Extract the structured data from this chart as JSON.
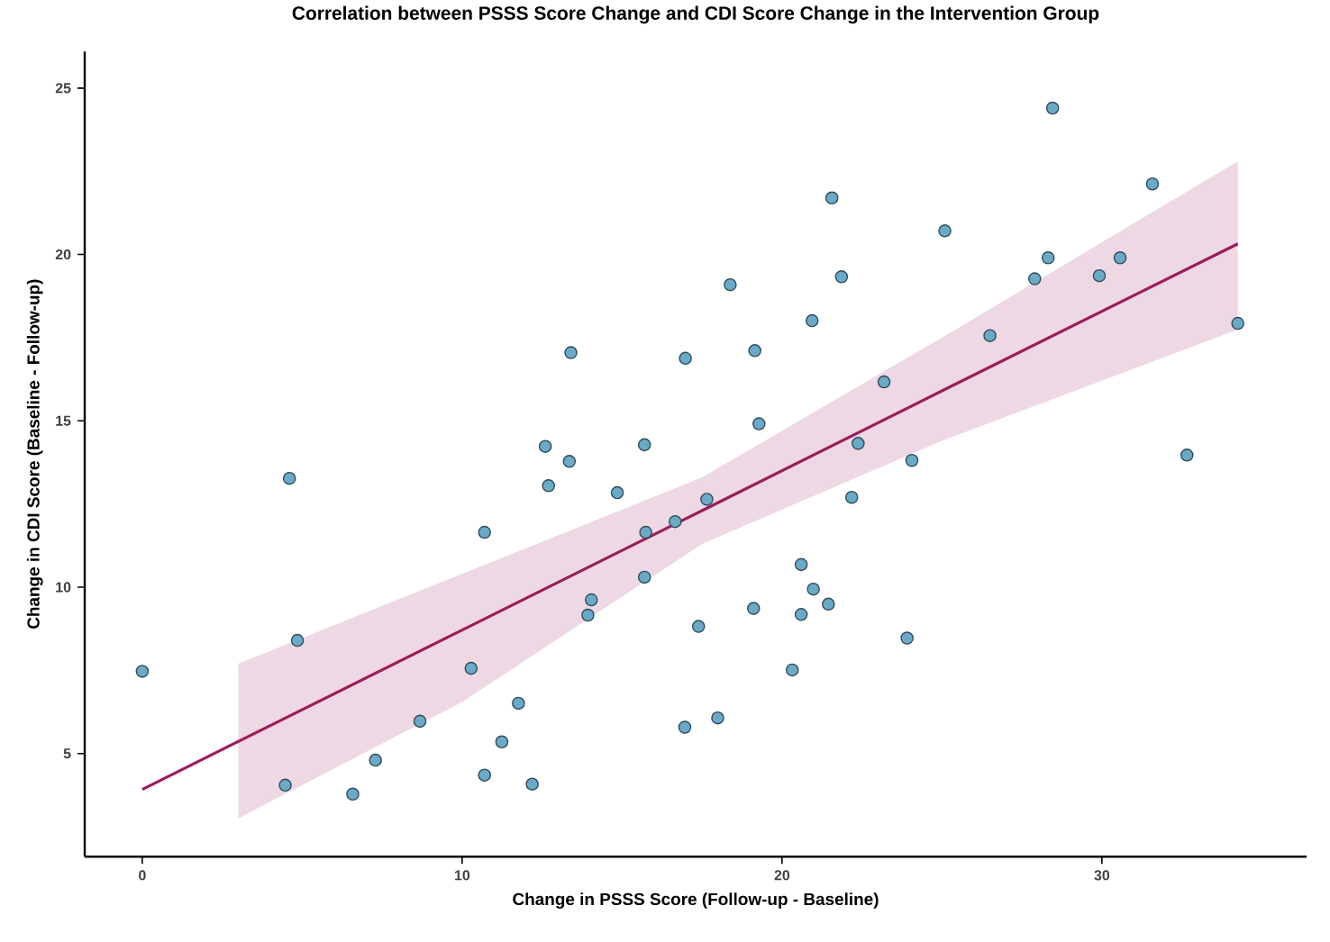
{
  "chart_data": {
    "type": "scatter",
    "title": "Correlation between PSSS Score Change and CDI Score Change in the Intervention Group",
    "xlabel": "Change in PSSS Score (Follow-up - Baseline)",
    "ylabel": "Change in CDI Score (Baseline - Follow-up)",
    "xlim": [
      -1.8,
      36.4
    ],
    "ylim": [
      1.9,
      26.1
    ],
    "xticks": [
      0,
      10,
      20,
      30
    ],
    "yticks": [
      5,
      10,
      15,
      20,
      25
    ],
    "marker": "circle",
    "series": [
      {
        "color": "#6aaac8",
        "x": [
          0,
          4.6,
          4.85,
          4.47,
          6.58,
          7.29,
          8.68,
          10.28,
          10.7,
          10.7,
          11.24,
          11.76,
          12.19,
          12.7,
          12.6,
          13.35,
          13.4,
          13.93,
          14.04,
          14.85,
          15.7,
          15.74,
          15.7,
          16.66,
          17.65,
          17.39,
          16.96,
          17.99,
          19.11,
          20.32,
          20.6,
          20.6,
          20.98,
          21.45,
          22.18,
          23.91,
          24.06,
          32.66,
          28.46,
          31.58,
          21.56,
          25.09,
          28.32,
          27.9,
          29.92,
          30.57,
          18.38,
          21.86,
          20.94,
          16.98,
          19.15,
          34.25,
          26.5,
          23.19,
          19.28,
          22.38
        ],
        "values": [
          7.47,
          13.27,
          8.4,
          4.05,
          3.78,
          4.8,
          5.97,
          7.56,
          11.65,
          4.35,
          5.35,
          6.51,
          4.08,
          13.05,
          14.23,
          13.78,
          17.05,
          9.16,
          9.62,
          12.84,
          14.28,
          11.65,
          10.3,
          11.97,
          12.64,
          8.82,
          5.79,
          6.07,
          9.36,
          7.51,
          10.68,
          9.18,
          9.94,
          9.49,
          12.7,
          8.47,
          13.81,
          13.97,
          24.4,
          22.12,
          21.7,
          20.71,
          19.9,
          19.27,
          19.36,
          19.9,
          19.09,
          19.33,
          18.01,
          16.88,
          17.11,
          17.93,
          17.56,
          16.17,
          14.91,
          14.32
        ]
      },
      {
        "type": "line",
        "color": "#9c1c5c",
        "marker": "none",
        "x": [
          0,
          3,
          10,
          17.5,
          25,
          34.25
        ],
        "values": [
          3.92,
          5.36,
          8.71,
          12.3,
          15.9,
          20.32
        ],
        "lower": [
          null,
          3.05,
          6.55,
          11.3,
          14.4,
          17.74
        ],
        "upper": [
          null,
          7.7,
          10.4,
          13.3,
          17.5,
          22.8
        ]
      }
    ]
  }
}
